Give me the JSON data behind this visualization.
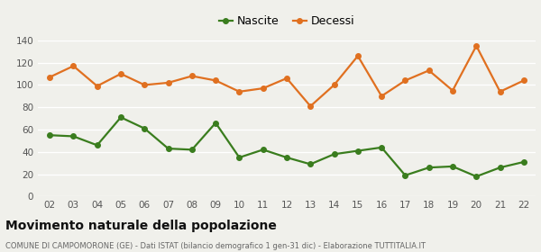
{
  "years": [
    "02",
    "03",
    "04",
    "05",
    "06",
    "07",
    "08",
    "09",
    "10",
    "11",
    "12",
    "13",
    "14",
    "15",
    "16",
    "17",
    "18",
    "19",
    "20",
    "21",
    "22"
  ],
  "nascite": [
    55,
    54,
    46,
    71,
    61,
    43,
    42,
    66,
    35,
    42,
    35,
    29,
    38,
    41,
    44,
    19,
    26,
    27,
    18,
    26,
    31
  ],
  "decessi": [
    107,
    117,
    99,
    110,
    100,
    102,
    108,
    104,
    94,
    97,
    106,
    81,
    100,
    126,
    90,
    104,
    113,
    95,
    135,
    94,
    104
  ],
  "nascite_color": "#3a7d1e",
  "decessi_color": "#e07020",
  "background_color": "#f0f0eb",
  "grid_color": "#ffffff",
  "title": "Movimento naturale della popolazione",
  "subtitle": "COMUNE DI CAMPOMORONE (GE) - Dati ISTAT (bilancio demografico 1 gen-31 dic) - Elaborazione TUTTITALIA.IT",
  "legend_nascite": "Nascite",
  "legend_decessi": "Decessi",
  "ylim": [
    0,
    140
  ],
  "yticks": [
    0,
    20,
    40,
    60,
    80,
    100,
    120,
    140
  ],
  "marker_size": 4,
  "line_width": 1.6
}
